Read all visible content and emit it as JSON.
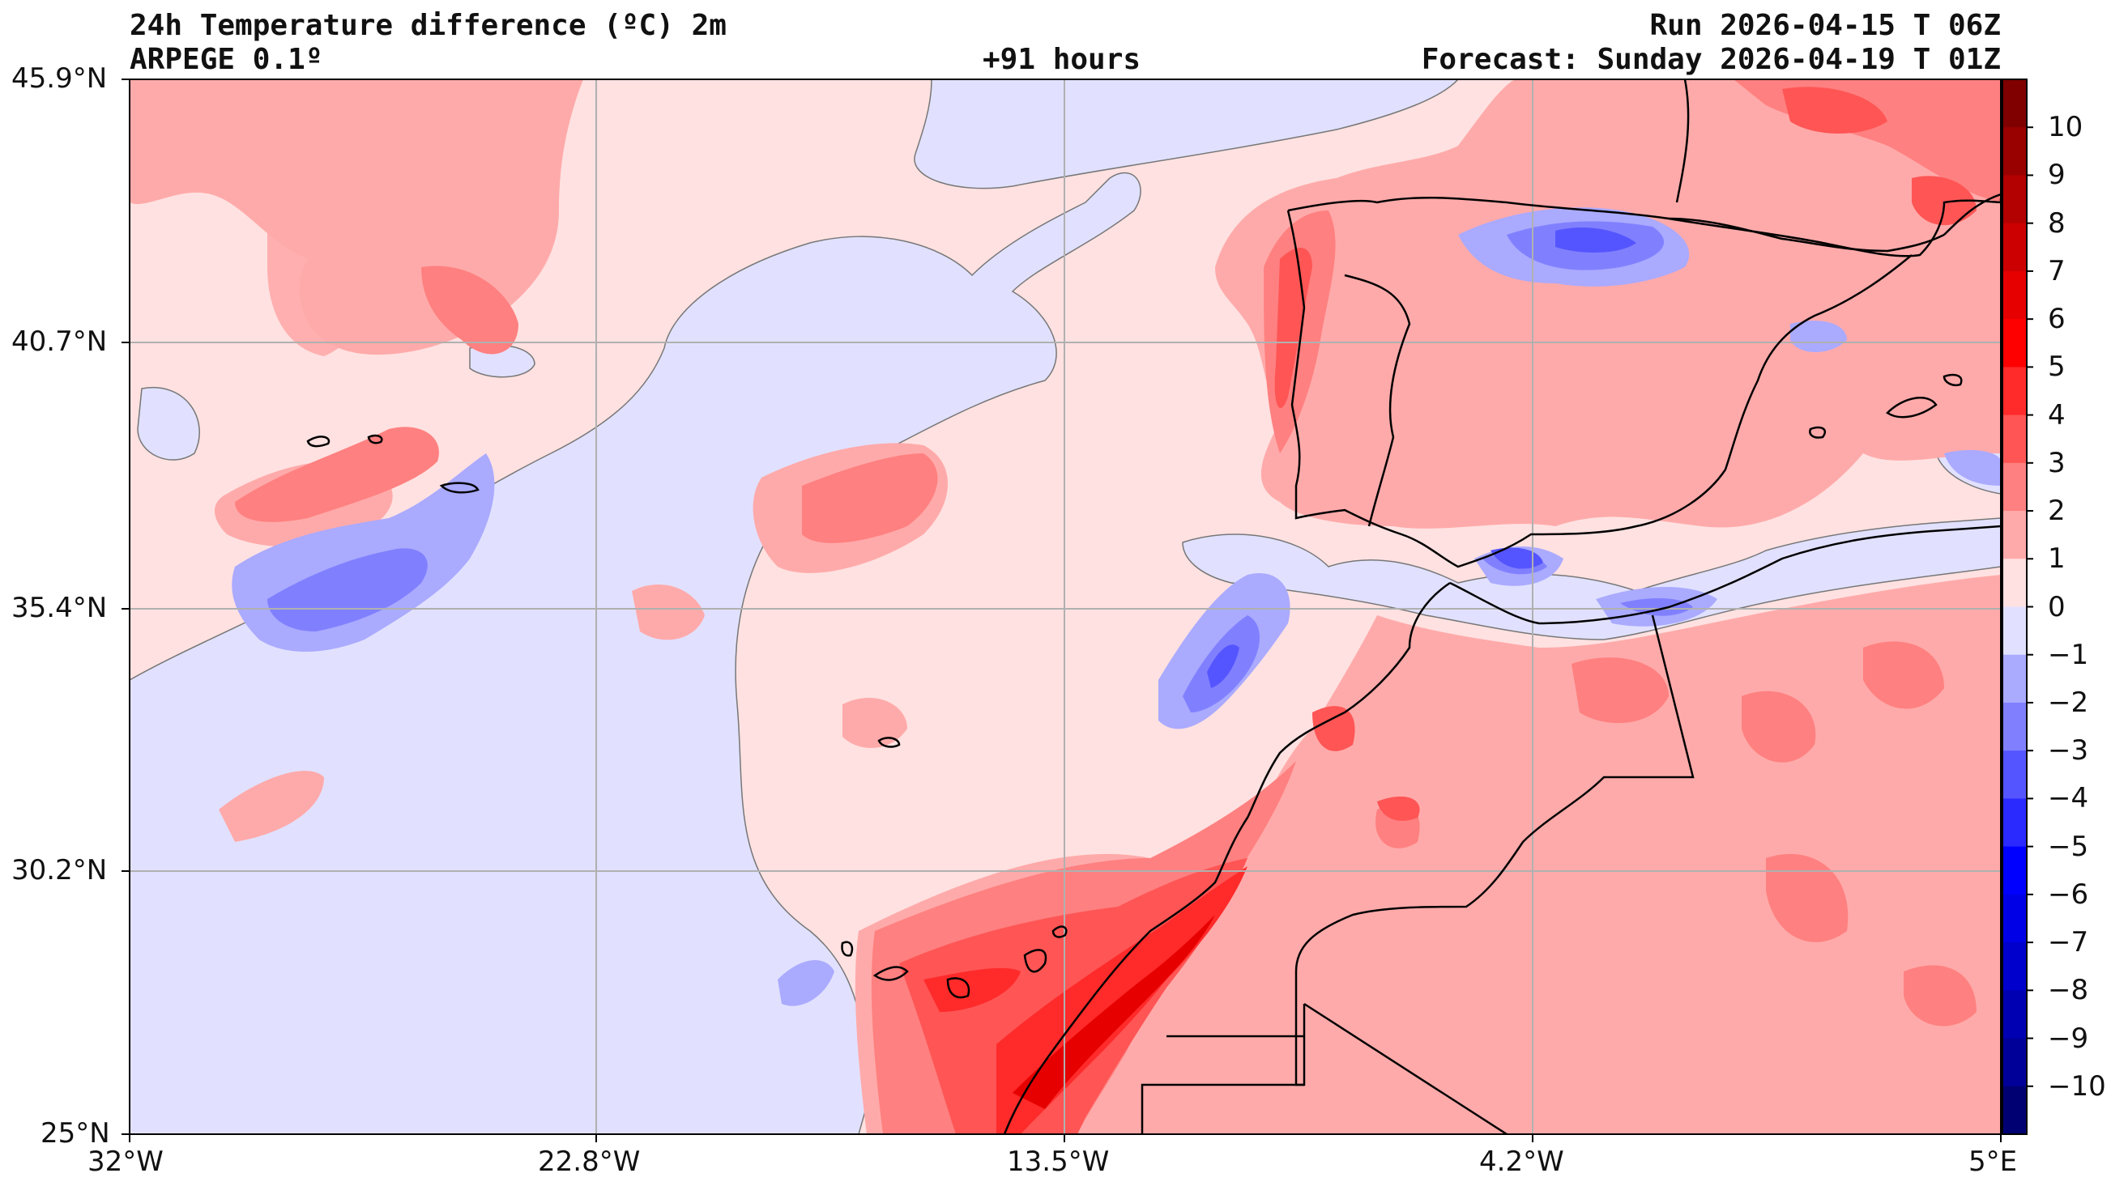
{
  "header": {
    "title": "24h Temperature difference (ºC) 2m",
    "model": "ARPEGE 0.1º",
    "lead": "+91 hours",
    "run": "Run 2026-04-15 T 06Z",
    "forecast": "Forecast: Sunday 2026-04-19 T 01Z"
  },
  "axes": {
    "lat_labels": [
      "45.9°N",
      "40.7°N",
      "35.4°N",
      "30.2°N",
      "25°N"
    ],
    "lon_labels": [
      "32°W",
      "22.8°W",
      "13.5°W",
      "4.2°W",
      "5°E"
    ]
  },
  "colorbar": {
    "labels": [
      "10",
      "9",
      "8",
      "7",
      "6",
      "5",
      "4",
      "3",
      "2",
      "1",
      "0",
      "−1",
      "−2",
      "−3",
      "−4",
      "−5",
      "−6",
      "−7",
      "−8",
      "−9",
      "−10"
    ],
    "colors": [
      "#800000",
      "#990000",
      "#b30000",
      "#cc0000",
      "#e60000",
      "#ff0000",
      "#ff2a2a",
      "#ff5555",
      "#ff8080",
      "#ffaaaa",
      "#ffe1e1",
      "#e1e1ff",
      "#aaaaff",
      "#8080ff",
      "#5555ff",
      "#2a2aff",
      "#0000ff",
      "#0000e6",
      "#0000cc",
      "#0000b3",
      "#000099",
      "#000073"
    ]
  },
  "palette": {
    "base_pos": "#ffe1e1",
    "base_neg": "#e1e1ff",
    "p1": "#ffaaaa",
    "p2": "#ff8080",
    "p3": "#ff5555",
    "p4": "#ff2a2a",
    "p5": "#e60000",
    "n1": "#aaaaff",
    "n2": "#8080ff",
    "n3": "#5555ff",
    "grid": "#b0b0b0",
    "coast": "#000000",
    "contour": "#777777"
  }
}
